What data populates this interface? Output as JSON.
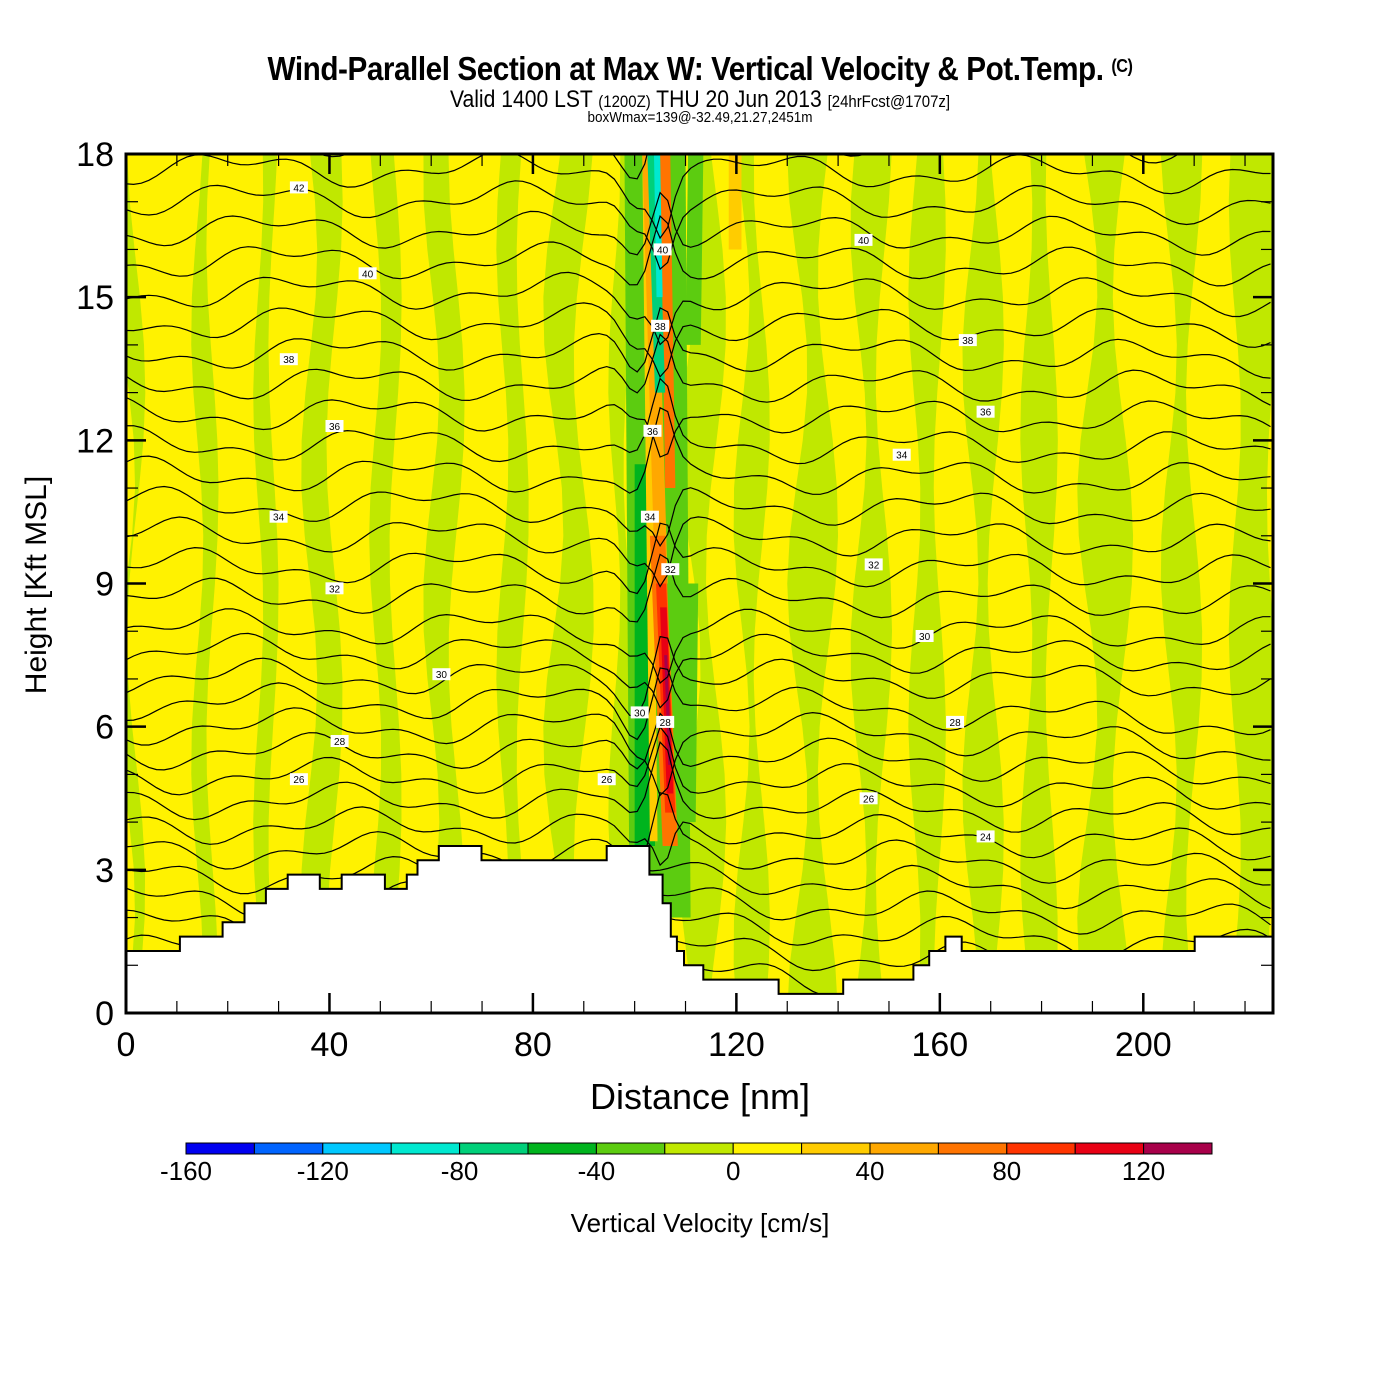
{
  "header": {
    "title": "Wind-Parallel Section at Max W: Vertical Velocity & Pot.Temp.",
    "copyright": "(C)",
    "valid_prefix": "Valid 1400 LST",
    "valid_utc": "(1200Z)",
    "valid_date": "THU 20 Jun 2013",
    "forecast": "[24hrFcst@1707z]",
    "box_info": "boxWmax=139@-32.49,21.27,2451m"
  },
  "chart_data": {
    "type": "heatmap",
    "title": "Wind-Parallel Section at Max W: Vertical Velocity & Pot.Temp.",
    "xlabel": "Distance [nm]",
    "ylabel": "Height [Kft MSL]",
    "xlim": [
      0,
      225.5
    ],
    "ylim": [
      0,
      18
    ],
    "xticks": [
      0,
      40,
      80,
      120,
      160,
      200
    ],
    "xtick_labels": [
      "0",
      "40",
      "80",
      "120",
      "160",
      "200"
    ],
    "yticks": [
      0,
      3,
      6,
      9,
      12,
      15,
      18
    ],
    "ytick_labels": [
      "0",
      "3",
      "6",
      "9",
      "12",
      "15",
      "18"
    ],
    "colorbar": {
      "label": "Vertical Velocity [cm/s]",
      "bounds": [
        -160,
        -140,
        -120,
        -100,
        -80,
        -60,
        -40,
        -20,
        0,
        20,
        40,
        60,
        80,
        100,
        120,
        140
      ],
      "tick_values": [
        -160,
        -120,
        -80,
        -40,
        0,
        40,
        80,
        120
      ],
      "tick_labels": [
        "-160",
        "-120",
        "-80",
        "-40",
        "0",
        "40",
        "80",
        "120"
      ],
      "colors": [
        "#0000f0",
        "#0064ff",
        "#00c8ff",
        "#00e8d0",
        "#00d07a",
        "#00b41e",
        "#5ccc10",
        "#c0e800",
        "#fff200",
        "#ffcc00",
        "#ffa800",
        "#ff7400",
        "#ff3400",
        "#e80014",
        "#a8004a"
      ]
    },
    "max_w_cm_s": 139,
    "max_w_x_nm": 105,
    "theta_contour_interval_C": 1,
    "theta_labels": [
      {
        "value": "42",
        "x": 34,
        "y": 17.3
      },
      {
        "value": "40",
        "x": 47.5,
        "y": 15.5
      },
      {
        "value": "38",
        "x": 32,
        "y": 13.7
      },
      {
        "value": "36",
        "x": 41,
        "y": 12.3
      },
      {
        "value": "34",
        "x": 30,
        "y": 10.4
      },
      {
        "value": "32",
        "x": 41,
        "y": 8.9
      },
      {
        "value": "30",
        "x": 62,
        "y": 7.1
      },
      {
        "value": "28",
        "x": 42,
        "y": 5.7
      },
      {
        "value": "26",
        "x": 34,
        "y": 4.9
      },
      {
        "value": "26",
        "x": 94.5,
        "y": 4.9
      },
      {
        "value": "40",
        "x": 105.5,
        "y": 16
      },
      {
        "value": "38",
        "x": 105,
        "y": 14.4
      },
      {
        "value": "36",
        "x": 103.5,
        "y": 12.2
      },
      {
        "value": "34",
        "x": 103,
        "y": 10.4
      },
      {
        "value": "32",
        "x": 107,
        "y": 9.3
      },
      {
        "value": "30",
        "x": 101,
        "y": 6.3
      },
      {
        "value": "28",
        "x": 106,
        "y": 6.1
      },
      {
        "value": "40",
        "x": 145,
        "y": 16.2
      },
      {
        "value": "38",
        "x": 165.5,
        "y": 14.1
      },
      {
        "value": "36",
        "x": 169,
        "y": 12.6
      },
      {
        "value": "34",
        "x": 152.5,
        "y": 11.7
      },
      {
        "value": "32",
        "x": 147,
        "y": 9.4
      },
      {
        "value": "30",
        "x": 157,
        "y": 7.9
      },
      {
        "value": "28",
        "x": 163,
        "y": 6.1
      },
      {
        "value": "26",
        "x": 146,
        "y": 4.5
      },
      {
        "value": "24",
        "x": 169,
        "y": 3.7
      }
    ],
    "terrain": {
      "x": [
        0,
        10.6,
        10.6,
        19,
        19,
        23.3,
        23.3,
        27.5,
        27.5,
        31.8,
        31.8,
        38.1,
        38.1,
        42.4,
        42.4,
        50.9,
        50.9,
        55.2,
        55.2,
        57.3,
        57.3,
        61.5,
        61.5,
        69.9,
        69.9,
        94.5,
        94.5,
        102.9,
        102.9,
        105.5,
        105.5,
        107.1,
        107.1,
        108.3,
        108.3,
        109.7,
        109.7,
        113.5,
        113.5,
        128.3,
        128.3,
        134.6,
        134.6,
        141,
        141,
        154.8,
        154.8,
        157.9,
        157.9,
        161.1,
        161.1,
        164.3,
        164.3,
        176.4,
        176.4,
        210.1,
        210.1,
        225.5
      ],
      "height": [
        1.3,
        1.3,
        1.6,
        1.6,
        1.9,
        1.9,
        2.3,
        2.3,
        2.6,
        2.6,
        2.9,
        2.9,
        2.6,
        2.6,
        2.9,
        2.9,
        2.6,
        2.6,
        2.9,
        2.9,
        3.2,
        3.2,
        3.5,
        3.5,
        3.2,
        3.2,
        3.5,
        3.5,
        2.9,
        2.9,
        2.3,
        2.3,
        1.6,
        1.6,
        1.3,
        1.3,
        1.0,
        1.0,
        0.7,
        0.7,
        0.4,
        0.4,
        0.4,
        0.4,
        0.7,
        0.7,
        1.0,
        1.0,
        1.3,
        1.3,
        1.6,
        1.6,
        1.3,
        1.3,
        1.3,
        1.3,
        1.6,
        1.6
      ]
    },
    "w_features": [
      {
        "kind": "updraft-core",
        "x": [
          103,
          108
        ],
        "y": [
          4.2,
          9.5
        ],
        "w_cm_s": 120
      },
      {
        "kind": "updraft-upper",
        "x": [
          101,
          103.5
        ],
        "y": [
          9,
          18
        ],
        "w_cm_s": 60
      },
      {
        "kind": "downdraft",
        "x": [
          99,
          103
        ],
        "y": [
          3.6,
          11.5
        ],
        "w_cm_s": -50
      },
      {
        "kind": "downdraft-upper",
        "x": [
          104,
          106
        ],
        "y": [
          13,
          18
        ],
        "w_cm_s": -90
      }
    ]
  }
}
